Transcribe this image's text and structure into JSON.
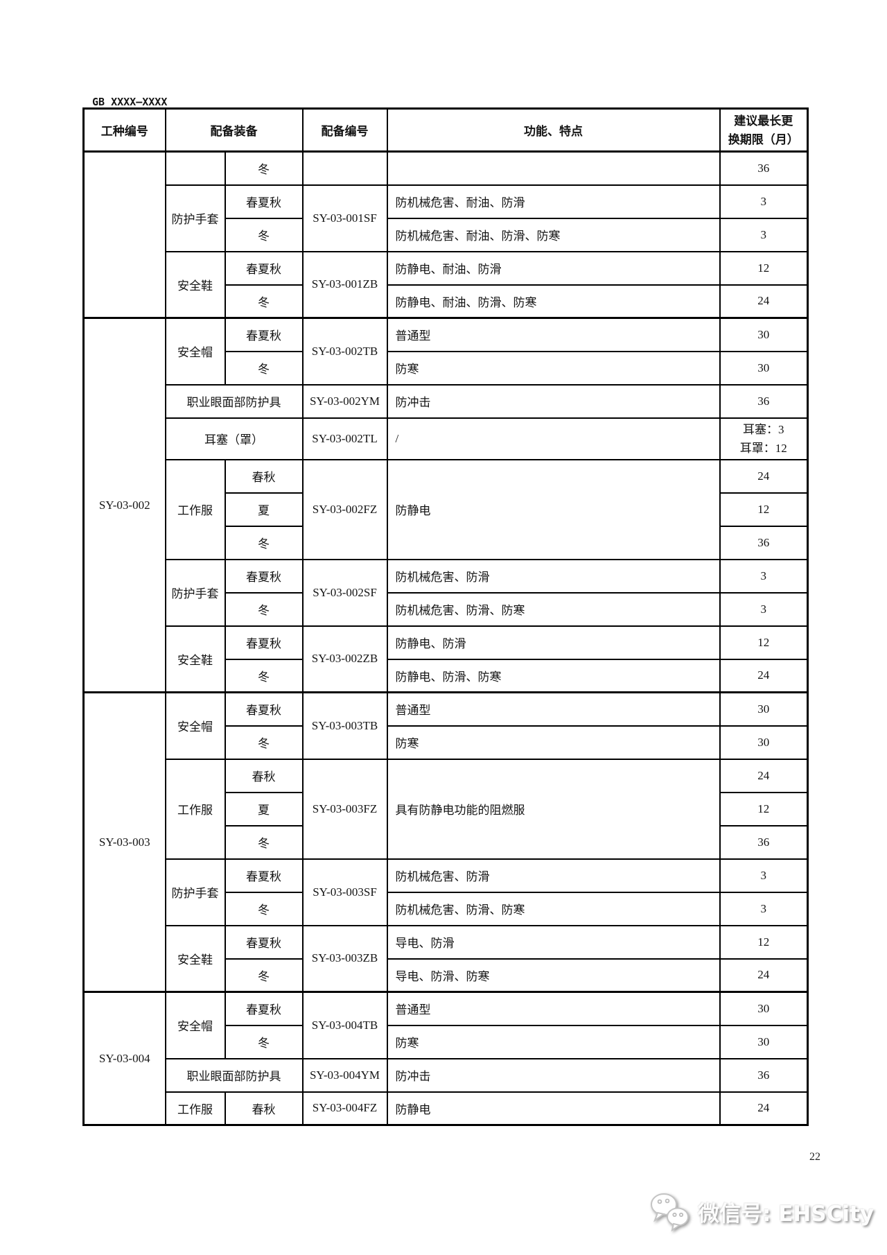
{
  "page": {
    "doc_code": "GB XXXX—XXXX",
    "page_number": "22",
    "watermark": {
      "icon": "wechat-icon",
      "text": "微信号: EHSCity"
    }
  },
  "table": {
    "header": {
      "job_code": "工种编号",
      "equipment": "配备装备",
      "equipment_code": "配备编号",
      "function_features": "功能、特点",
      "replacement_line1": "建议最长更",
      "replacement_line2": "换期限（月）"
    },
    "rows": [
      {
        "cells": [
          {
            "k": "jobno",
            "t": "",
            "rs": 5
          },
          {
            "k": "equip",
            "t": ""
          },
          {
            "k": "season",
            "t": "冬"
          },
          {
            "k": "code",
            "t": ""
          },
          {
            "k": "func",
            "t": ""
          },
          {
            "k": "months",
            "t": "36"
          }
        ]
      },
      {
        "cells": [
          {
            "k": "equip",
            "t": "防护手套",
            "rs": 2
          },
          {
            "k": "season",
            "t": "春夏秋"
          },
          {
            "k": "code",
            "t": "SY-03-001SF",
            "rs": 2
          },
          {
            "k": "func",
            "t": "防机械危害、耐油、防滑"
          },
          {
            "k": "months",
            "t": "3"
          }
        ]
      },
      {
        "cells": [
          {
            "k": "season",
            "t": "冬"
          },
          {
            "k": "func",
            "t": "防机械危害、耐油、防滑、防寒"
          },
          {
            "k": "months",
            "t": "3"
          }
        ]
      },
      {
        "cells": [
          {
            "k": "equip",
            "t": "安全鞋",
            "rs": 2
          },
          {
            "k": "season",
            "t": "春夏秋"
          },
          {
            "k": "code",
            "t": "SY-03-001ZB",
            "rs": 2
          },
          {
            "k": "func",
            "t": "防静电、耐油、防滑"
          },
          {
            "k": "months",
            "t": "12"
          }
        ]
      },
      {
        "cells": [
          {
            "k": "season",
            "t": "冬"
          },
          {
            "k": "func",
            "t": "防静电、耐油、防滑、防寒"
          },
          {
            "k": "months",
            "t": "24"
          }
        ]
      },
      {
        "section": true,
        "cells": [
          {
            "k": "jobno",
            "t": "SY-03-002",
            "rs": 11
          },
          {
            "k": "equip",
            "t": "安全帽",
            "rs": 2
          },
          {
            "k": "season",
            "t": "春夏秋"
          },
          {
            "k": "code",
            "t": "SY-03-002TB",
            "rs": 2
          },
          {
            "k": "func",
            "t": "普通型"
          },
          {
            "k": "months",
            "t": "30"
          }
        ]
      },
      {
        "cells": [
          {
            "k": "season",
            "t": "冬"
          },
          {
            "k": "func",
            "t": "防寒"
          },
          {
            "k": "months",
            "t": "30"
          }
        ]
      },
      {
        "cells": [
          {
            "k": "equip2",
            "t": "职业眼面部防护具",
            "cs": 2
          },
          {
            "k": "code",
            "t": "SY-03-002YM"
          },
          {
            "k": "func",
            "t": "防冲击"
          },
          {
            "k": "months",
            "t": "36"
          }
        ]
      },
      {
        "tall": true,
        "cells": [
          {
            "k": "equip2",
            "t": "耳塞（罩）",
            "cs": 2
          },
          {
            "k": "code",
            "t": "SY-03-002TL"
          },
          {
            "k": "func",
            "t": "/"
          },
          {
            "k": "months",
            "lines": [
              "耳塞：3",
              "耳罩：12"
            ]
          }
        ]
      },
      {
        "cells": [
          {
            "k": "equip",
            "t": "工作服",
            "rs": 3
          },
          {
            "k": "season",
            "t": "春秋"
          },
          {
            "k": "code",
            "t": "SY-03-002FZ",
            "rs": 3
          },
          {
            "k": "func",
            "t": "防静电",
            "rs": 3
          },
          {
            "k": "months",
            "t": "24"
          }
        ]
      },
      {
        "cells": [
          {
            "k": "season",
            "t": "夏"
          },
          {
            "k": "months",
            "t": "12"
          }
        ]
      },
      {
        "cells": [
          {
            "k": "season",
            "t": "冬"
          },
          {
            "k": "months",
            "t": "36"
          }
        ]
      },
      {
        "cells": [
          {
            "k": "equip",
            "t": "防护手套",
            "rs": 2
          },
          {
            "k": "season",
            "t": "春夏秋"
          },
          {
            "k": "code",
            "t": "SY-03-002SF",
            "rs": 2
          },
          {
            "k": "func",
            "t": "防机械危害、防滑"
          },
          {
            "k": "months",
            "t": "3"
          }
        ]
      },
      {
        "cells": [
          {
            "k": "season",
            "t": "冬"
          },
          {
            "k": "func",
            "t": "防机械危害、防滑、防寒"
          },
          {
            "k": "months",
            "t": "3"
          }
        ]
      },
      {
        "cells": [
          {
            "k": "equip",
            "t": "安全鞋",
            "rs": 2
          },
          {
            "k": "season",
            "t": "春夏秋"
          },
          {
            "k": "code",
            "t": "SY-03-002ZB",
            "rs": 2
          },
          {
            "k": "func",
            "t": "防静电、防滑"
          },
          {
            "k": "months",
            "t": "12"
          }
        ]
      },
      {
        "cells": [
          {
            "k": "season",
            "t": "冬"
          },
          {
            "k": "func",
            "t": "防静电、防滑、防寒"
          },
          {
            "k": "months",
            "t": "24"
          }
        ]
      },
      {
        "section": true,
        "cells": [
          {
            "k": "jobno",
            "t": "SY-03-003",
            "rs": 9
          },
          {
            "k": "equip",
            "t": "安全帽",
            "rs": 2
          },
          {
            "k": "season",
            "t": "春夏秋"
          },
          {
            "k": "code",
            "t": "SY-03-003TB",
            "rs": 2
          },
          {
            "k": "func",
            "t": "普通型"
          },
          {
            "k": "months",
            "t": "30"
          }
        ]
      },
      {
        "cells": [
          {
            "k": "season",
            "t": "冬"
          },
          {
            "k": "func",
            "t": "防寒"
          },
          {
            "k": "months",
            "t": "30"
          }
        ]
      },
      {
        "cells": [
          {
            "k": "equip",
            "t": "工作服",
            "rs": 3
          },
          {
            "k": "season",
            "t": "春秋"
          },
          {
            "k": "code",
            "t": "SY-03-003FZ",
            "rs": 3
          },
          {
            "k": "func",
            "t": "具有防静电功能的阻燃服",
            "rs": 3
          },
          {
            "k": "months",
            "t": "24"
          }
        ]
      },
      {
        "cells": [
          {
            "k": "season",
            "t": "夏"
          },
          {
            "k": "months",
            "t": "12"
          }
        ]
      },
      {
        "cells": [
          {
            "k": "season",
            "t": "冬"
          },
          {
            "k": "months",
            "t": "36"
          }
        ]
      },
      {
        "cells": [
          {
            "k": "equip",
            "t": "防护手套",
            "rs": 2
          },
          {
            "k": "season",
            "t": "春夏秋"
          },
          {
            "k": "code",
            "t": "SY-03-003SF",
            "rs": 2
          },
          {
            "k": "func",
            "t": "防机械危害、防滑"
          },
          {
            "k": "months",
            "t": "3"
          }
        ]
      },
      {
        "cells": [
          {
            "k": "season",
            "t": "冬"
          },
          {
            "k": "func",
            "t": "防机械危害、防滑、防寒"
          },
          {
            "k": "months",
            "t": "3"
          }
        ]
      },
      {
        "cells": [
          {
            "k": "equip",
            "t": "安全鞋",
            "rs": 2
          },
          {
            "k": "season",
            "t": "春夏秋"
          },
          {
            "k": "code",
            "t": "SY-03-003ZB",
            "rs": 2
          },
          {
            "k": "func",
            "t": "导电、防滑"
          },
          {
            "k": "months",
            "t": "12"
          }
        ]
      },
      {
        "cells": [
          {
            "k": "season",
            "t": "冬"
          },
          {
            "k": "func",
            "t": "导电、防滑、防寒"
          },
          {
            "k": "months",
            "t": "24"
          }
        ]
      },
      {
        "section": true,
        "cells": [
          {
            "k": "jobno",
            "t": "SY-03-004",
            "rs": 4
          },
          {
            "k": "equip",
            "t": "安全帽",
            "rs": 2
          },
          {
            "k": "season",
            "t": "春夏秋"
          },
          {
            "k": "code",
            "t": "SY-03-004TB",
            "rs": 2
          },
          {
            "k": "func",
            "t": "普通型"
          },
          {
            "k": "months",
            "t": "30"
          }
        ]
      },
      {
        "cells": [
          {
            "k": "season",
            "t": "冬"
          },
          {
            "k": "func",
            "t": "防寒"
          },
          {
            "k": "months",
            "t": "30"
          }
        ]
      },
      {
        "cells": [
          {
            "k": "equip2",
            "t": "职业眼面部防护具",
            "cs": 2
          },
          {
            "k": "code",
            "t": "SY-03-004YM"
          },
          {
            "k": "func",
            "t": "防冲击"
          },
          {
            "k": "months",
            "t": "36"
          }
        ]
      },
      {
        "cells": [
          {
            "k": "equip",
            "t": "工作服"
          },
          {
            "k": "season",
            "t": "春秋"
          },
          {
            "k": "code",
            "t": "SY-03-004FZ"
          },
          {
            "k": "func",
            "t": "防静电"
          },
          {
            "k": "months",
            "t": "24"
          }
        ]
      }
    ]
  }
}
